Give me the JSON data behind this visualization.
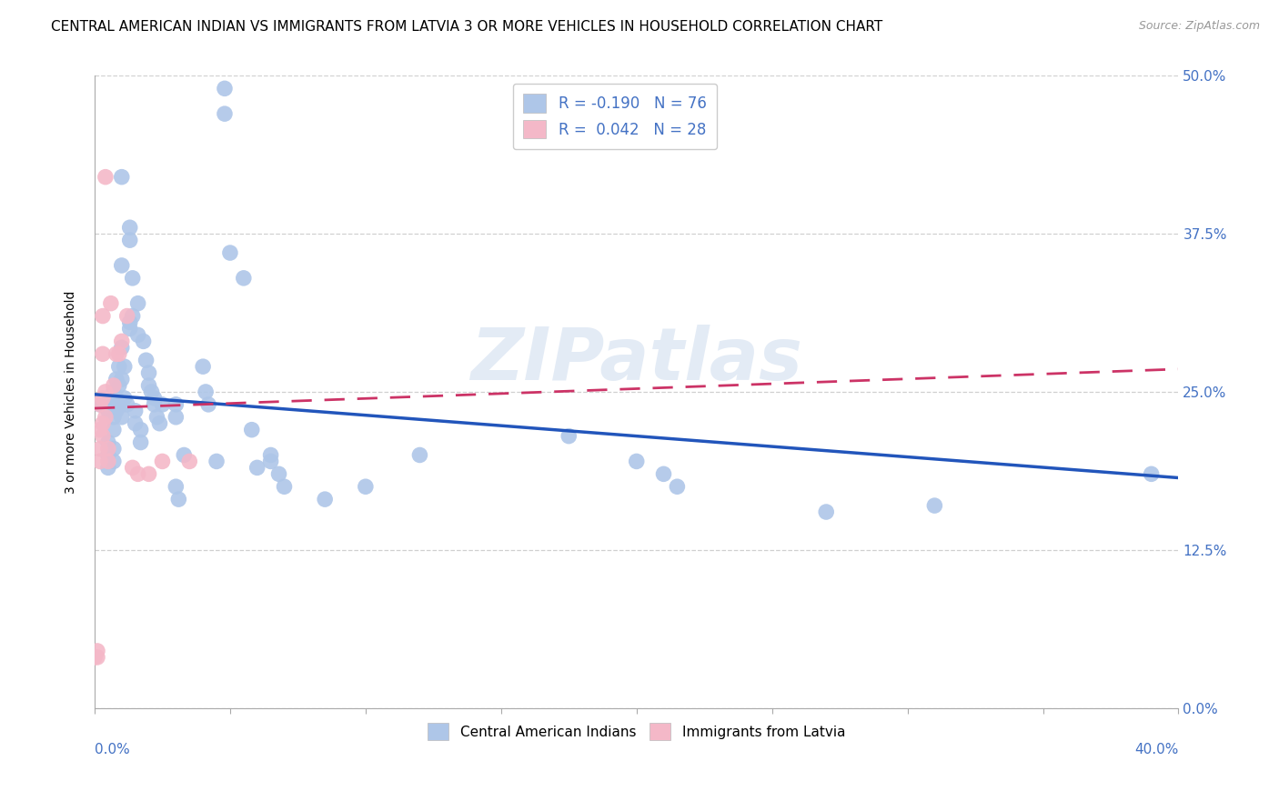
{
  "title": "CENTRAL AMERICAN INDIAN VS IMMIGRANTS FROM LATVIA 3 OR MORE VEHICLES IN HOUSEHOLD CORRELATION CHART",
  "source": "Source: ZipAtlas.com",
  "ylabel": "3 or more Vehicles in Household",
  "legend_label_blue": "Central American Indians",
  "legend_label_pink": "Immigrants from Latvia",
  "R_blue": -0.19,
  "N_blue": 76,
  "R_pink": 0.042,
  "N_pink": 28,
  "watermark": "ZIPatlas",
  "blue_scatter": [
    [
      0.002,
      0.24
    ],
    [
      0.005,
      0.235
    ],
    [
      0.005,
      0.21
    ],
    [
      0.005,
      0.2
    ],
    [
      0.005,
      0.19
    ],
    [
      0.007,
      0.25
    ],
    [
      0.007,
      0.24
    ],
    [
      0.007,
      0.23
    ],
    [
      0.007,
      0.22
    ],
    [
      0.007,
      0.205
    ],
    [
      0.007,
      0.195
    ],
    [
      0.008,
      0.26
    ],
    [
      0.008,
      0.245
    ],
    [
      0.008,
      0.235
    ],
    [
      0.009,
      0.27
    ],
    [
      0.009,
      0.255
    ],
    [
      0.01,
      0.42
    ],
    [
      0.01,
      0.35
    ],
    [
      0.01,
      0.285
    ],
    [
      0.01,
      0.26
    ],
    [
      0.01,
      0.24
    ],
    [
      0.01,
      0.23
    ],
    [
      0.011,
      0.27
    ],
    [
      0.011,
      0.245
    ],
    [
      0.012,
      0.24
    ],
    [
      0.013,
      0.38
    ],
    [
      0.013,
      0.37
    ],
    [
      0.013,
      0.305
    ],
    [
      0.013,
      0.3
    ],
    [
      0.014,
      0.34
    ],
    [
      0.014,
      0.31
    ],
    [
      0.015,
      0.235
    ],
    [
      0.015,
      0.225
    ],
    [
      0.016,
      0.32
    ],
    [
      0.016,
      0.295
    ],
    [
      0.017,
      0.22
    ],
    [
      0.017,
      0.21
    ],
    [
      0.018,
      0.29
    ],
    [
      0.019,
      0.275
    ],
    [
      0.02,
      0.265
    ],
    [
      0.02,
      0.255
    ],
    [
      0.021,
      0.25
    ],
    [
      0.022,
      0.245
    ],
    [
      0.022,
      0.24
    ],
    [
      0.023,
      0.23
    ],
    [
      0.024,
      0.225
    ],
    [
      0.025,
      0.24
    ],
    [
      0.03,
      0.24
    ],
    [
      0.03,
      0.23
    ],
    [
      0.03,
      0.175
    ],
    [
      0.031,
      0.165
    ],
    [
      0.033,
      0.2
    ],
    [
      0.04,
      0.27
    ],
    [
      0.041,
      0.25
    ],
    [
      0.042,
      0.24
    ],
    [
      0.045,
      0.195
    ],
    [
      0.048,
      0.49
    ],
    [
      0.048,
      0.47
    ],
    [
      0.05,
      0.36
    ],
    [
      0.055,
      0.34
    ],
    [
      0.058,
      0.22
    ],
    [
      0.06,
      0.19
    ],
    [
      0.065,
      0.2
    ],
    [
      0.065,
      0.195
    ],
    [
      0.068,
      0.185
    ],
    [
      0.07,
      0.175
    ],
    [
      0.085,
      0.165
    ],
    [
      0.1,
      0.175
    ],
    [
      0.12,
      0.2
    ],
    [
      0.175,
      0.215
    ],
    [
      0.2,
      0.195
    ],
    [
      0.21,
      0.185
    ],
    [
      0.215,
      0.175
    ],
    [
      0.27,
      0.155
    ],
    [
      0.31,
      0.16
    ],
    [
      0.39,
      0.185
    ]
  ],
  "pink_scatter": [
    [
      0.0,
      0.04
    ],
    [
      0.001,
      0.04
    ],
    [
      0.001,
      0.045
    ],
    [
      0.002,
      0.195
    ],
    [
      0.002,
      0.205
    ],
    [
      0.002,
      0.22
    ],
    [
      0.002,
      0.24
    ],
    [
      0.003,
      0.215
    ],
    [
      0.003,
      0.225
    ],
    [
      0.003,
      0.245
    ],
    [
      0.003,
      0.28
    ],
    [
      0.003,
      0.31
    ],
    [
      0.004,
      0.23
    ],
    [
      0.004,
      0.25
    ],
    [
      0.004,
      0.42
    ],
    [
      0.005,
      0.195
    ],
    [
      0.005,
      0.205
    ],
    [
      0.006,
      0.32
    ],
    [
      0.007,
      0.255
    ],
    [
      0.008,
      0.28
    ],
    [
      0.009,
      0.28
    ],
    [
      0.01,
      0.29
    ],
    [
      0.012,
      0.31
    ],
    [
      0.014,
      0.19
    ],
    [
      0.016,
      0.185
    ],
    [
      0.02,
      0.185
    ],
    [
      0.025,
      0.195
    ],
    [
      0.035,
      0.195
    ]
  ],
  "blue_line_x": [
    0.0,
    0.4
  ],
  "blue_line_y_start": 0.248,
  "blue_line_y_end": 0.182,
  "pink_line_x": [
    0.0,
    0.4
  ],
  "pink_line_y_start": 0.237,
  "pink_line_y_end": 0.268,
  "background_color": "#ffffff",
  "grid_color": "#d0d0d0",
  "scatter_blue_color": "#aec6e8",
  "scatter_pink_color": "#f4b8c8",
  "line_blue_color": "#2255bb",
  "line_pink_color": "#cc3366",
  "title_fontsize": 11,
  "axis_label_fontsize": 10,
  "tick_fontsize": 11,
  "right_tick_color": "#4472c4",
  "x_minor_ticks": [
    0.0,
    0.05,
    0.1,
    0.15,
    0.2,
    0.25,
    0.3,
    0.35,
    0.4
  ],
  "y_ticks": [
    0.0,
    0.125,
    0.25,
    0.375,
    0.5
  ]
}
